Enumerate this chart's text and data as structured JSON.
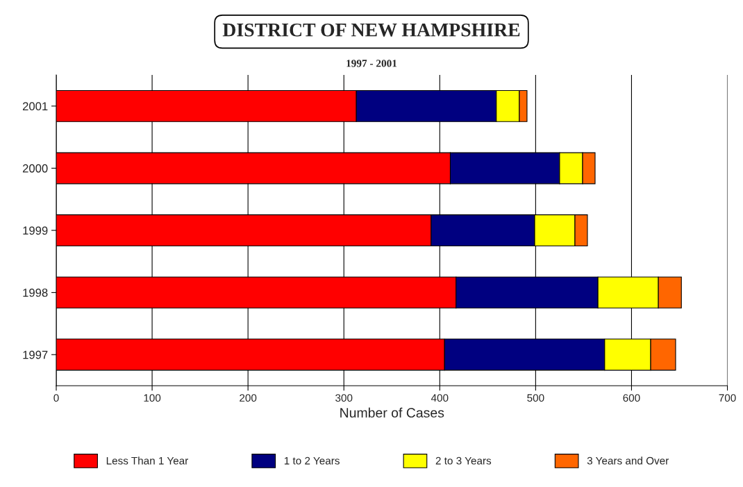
{
  "chart_data": {
    "type": "bar",
    "orientation": "horizontal",
    "stacked": true,
    "title": "DISTRICT OF NEW HAMPSHIRE",
    "subtitle": "1997 - 2001",
    "xlabel": "Number of Cases",
    "categories": [
      "2001",
      "2000",
      "1999",
      "1998",
      "1997"
    ],
    "series": [
      {
        "name": "Less Than 1 Year",
        "color": "#ff0000",
        "values": [
          313,
          411,
          391,
          417,
          405
        ]
      },
      {
        "name": "1 to 2 Years",
        "color": "#000080",
        "values": [
          146,
          114,
          108,
          148,
          167
        ]
      },
      {
        "name": "2 to 3 Years",
        "color": "#ffff00",
        "values": [
          24,
          24,
          42,
          63,
          48
        ]
      },
      {
        "name": "3 Years and Over",
        "color": "#ff6600",
        "values": [
          8,
          13,
          13,
          24,
          26
        ]
      }
    ],
    "xlim": [
      0,
      700
    ],
    "xticks": [
      0,
      100,
      200,
      300,
      400,
      500,
      600,
      700
    ],
    "grid": "x",
    "legend": "bottom"
  }
}
